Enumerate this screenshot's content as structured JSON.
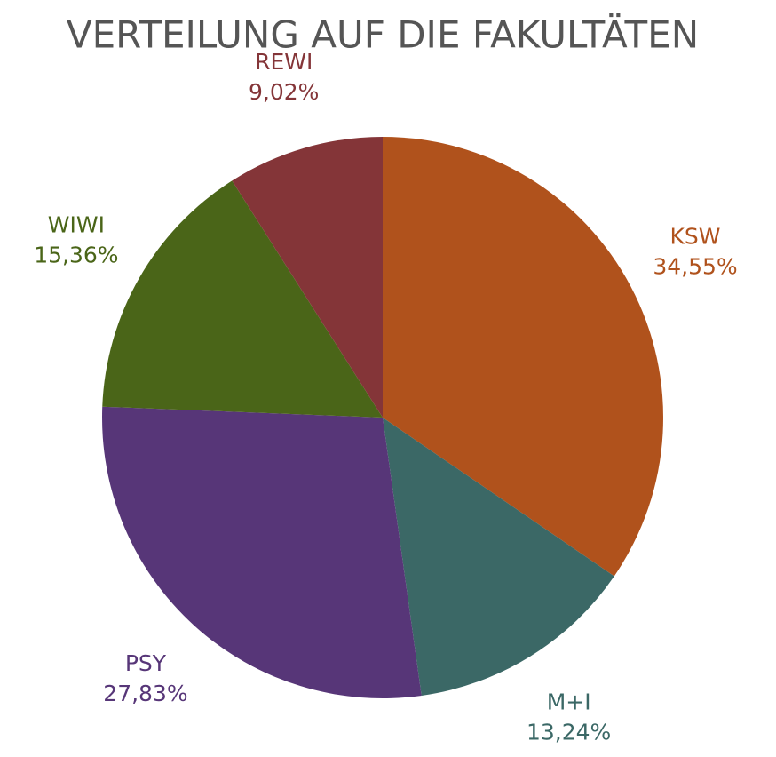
{
  "chart_data": {
    "type": "pie",
    "title": "VERTEILUNG AUF DIE FAKULTÄTEN",
    "categories": [
      "KSW",
      "M+I",
      "PSY",
      "WIWI",
      "REWI"
    ],
    "values": [
      34.55,
      13.24,
      27.83,
      15.36,
      9.02
    ],
    "value_labels": [
      "34,55%",
      "13,24%",
      "27,83%",
      "15,36%",
      "9,02%"
    ],
    "colors": [
      "#b0521c",
      "#3b6866",
      "#573678",
      "#4a6518",
      "#843538"
    ]
  }
}
